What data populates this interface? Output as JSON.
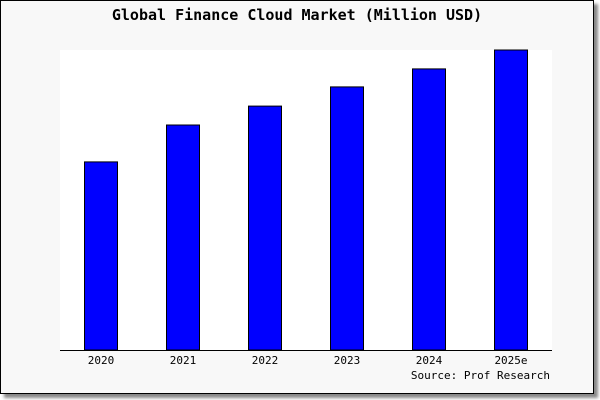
{
  "chart_data": {
    "type": "bar",
    "title": "Global Finance Cloud Market (Million USD)",
    "categories": [
      "2020",
      "2021",
      "2022",
      "2023",
      "2024",
      "2025e"
    ],
    "values": [
      62.7,
      75.0,
      81.3,
      87.7,
      93.7,
      100
    ],
    "ylim": [
      0,
      100
    ],
    "xlabel": "",
    "ylabel": "",
    "grid": false,
    "bar_color": "#0000ff",
    "source": "Source: Prof Research"
  }
}
